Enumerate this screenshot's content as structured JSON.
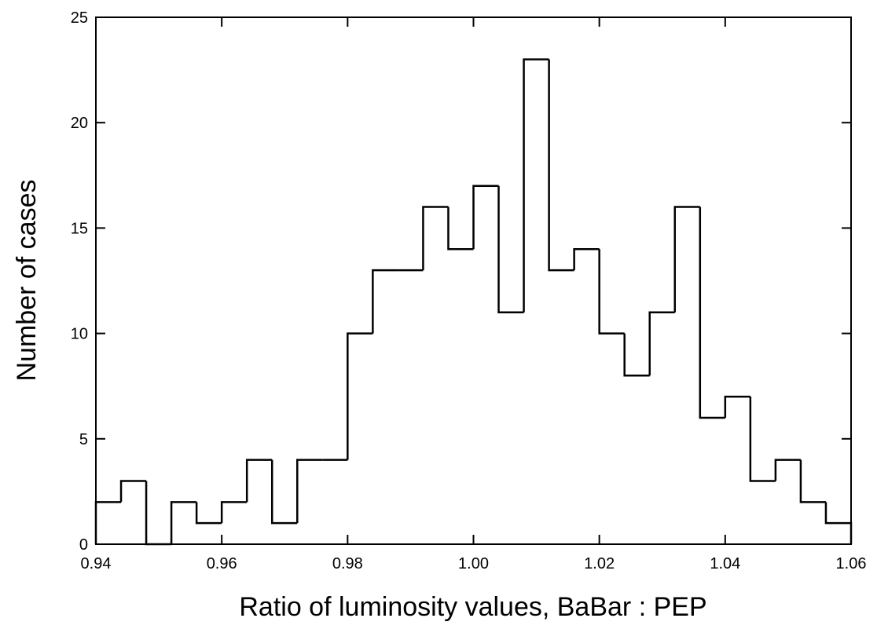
{
  "chart_data": {
    "type": "histogram",
    "xlabel": "Ratio of luminosity values, BaBar : PEP",
    "ylabel": "Number of cases",
    "bins": [
      0.94,
      0.944,
      0.948,
      0.952,
      0.956,
      0.96,
      0.964,
      0.968,
      0.972,
      0.976,
      0.98,
      0.984,
      0.988,
      0.992,
      0.996,
      1,
      1.004,
      1.008,
      1.012,
      1.016,
      1.02,
      1.024,
      1.028,
      1.032,
      1.036,
      1.04,
      1.044,
      1.048,
      1.052,
      1.056,
      1.06
    ],
    "values": [
      2,
      3,
      0,
      2,
      1,
      2,
      4,
      1,
      4,
      4,
      10,
      13,
      13,
      16,
      14,
      17,
      11,
      23,
      13,
      14,
      10,
      8,
      11,
      16,
      6,
      7,
      3,
      4,
      2,
      1
    ],
    "color": "#000000",
    "xlim": [
      0.94,
      1.06
    ],
    "xticks": [
      0.94,
      0.96,
      0.98,
      {
        "value": 1,
        "label": "1.00"
      },
      1.02,
      1.04,
      1.06
    ],
    "ylim": [
      0,
      25
    ],
    "yticks": [
      0,
      5,
      10,
      15,
      20,
      25
    ]
  }
}
